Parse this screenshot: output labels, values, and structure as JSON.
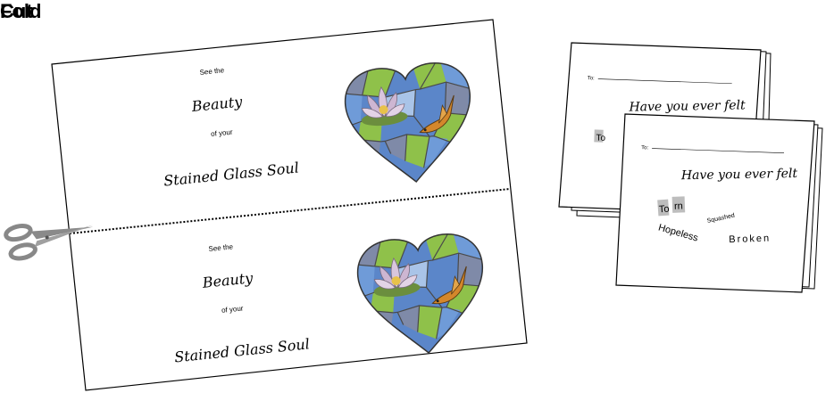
{
  "headings": {
    "cut": "Cut",
    "fold": "Fold"
  },
  "flyer": {
    "panels": [
      {
        "line1": "See the",
        "line2": "Beauty",
        "line3": "of your",
        "line4": "Stained Glass Soul"
      },
      {
        "line1": "See the",
        "line2": "Beauty",
        "line3": "of your",
        "line4": "Stained Glass Soul"
      }
    ]
  },
  "card": {
    "to_label": "To:",
    "headline": "Have you ever felt",
    "words": {
      "torn_a": "To",
      "torn_b": "rn",
      "squashed": "Squashed",
      "hopeless": "Hopeless",
      "broken": "Broken"
    }
  },
  "colors": {
    "cut_line": "#000000",
    "scissors": "#888888",
    "glass_blue": "#5b86c9",
    "glass_green": "#8fc14a",
    "glass_grey": "#7f8aa8",
    "lotus": "#d9c6dd",
    "bird": "#d4872b"
  },
  "icons": {
    "scissors": "scissors-icon",
    "heart": "stained-glass-heart-icon"
  }
}
